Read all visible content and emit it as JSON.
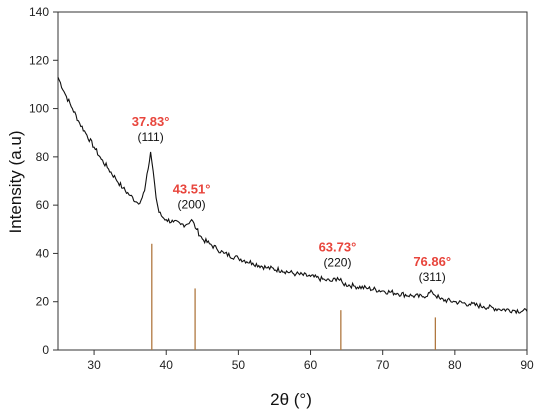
{
  "chart_data": {
    "type": "line",
    "xlabel": "2θ (°)",
    "ylabel": "Intensity (a.u)",
    "xlim": [
      25,
      90
    ],
    "ylim": [
      0,
      140
    ],
    "x_ticks": [
      30,
      40,
      50,
      60,
      70,
      80,
      90
    ],
    "y_ticks": [
      0,
      20,
      40,
      60,
      80,
      100,
      120,
      140
    ],
    "grid": false,
    "series": [
      {
        "x": [
          25,
          26,
          27,
          28,
          29,
          30,
          31,
          32,
          33,
          34,
          35,
          36,
          36.5,
          37,
          37.5,
          37.83,
          38.2,
          38.6,
          39,
          39.5,
          40,
          41,
          42,
          42.8,
          43.51,
          44.2,
          45,
          46,
          47,
          48,
          50,
          52,
          54,
          56,
          58,
          60,
          62,
          63,
          63.73,
          64.5,
          66,
          68,
          70,
          72,
          74,
          75.5,
          76.86,
          78,
          80,
          82,
          84,
          86,
          88,
          90
        ],
        "y": [
          113,
          106,
          100,
          94,
          89,
          84,
          79,
          75,
          71,
          67,
          64,
          61,
          62,
          66,
          75,
          82,
          74,
          63,
          57,
          55,
          54,
          53,
          52,
          52,
          54,
          50,
          46,
          44,
          42,
          40,
          38,
          36,
          34,
          33,
          31.5,
          30.5,
          29,
          28.5,
          30,
          27.5,
          26.5,
          25.5,
          24.5,
          23.5,
          22.5,
          22,
          24,
          21,
          20,
          19,
          18,
          17,
          16.5,
          16
        ]
      }
    ],
    "reference_lines": [
      {
        "x": 38.0,
        "height": 44
      },
      {
        "x": 44.0,
        "height": 25.5
      },
      {
        "x": 64.2,
        "height": 16.5
      },
      {
        "x": 77.3,
        "height": 13.5
      }
    ],
    "annotations": [
      {
        "angle": "37.83°",
        "hkl": "(111)",
        "x": 37.83,
        "y": 82
      },
      {
        "angle": "43.51°",
        "hkl": "(200)",
        "x": 43.51,
        "y": 54
      },
      {
        "angle": "63.73°",
        "hkl": "(220)",
        "x": 63.73,
        "y": 30
      },
      {
        "angle": "76.86°",
        "hkl": "(311)",
        "x": 76.86,
        "y": 24
      }
    ],
    "colors": {
      "pattern": "#111111",
      "reference": "#b07840",
      "angle_label": "#e8453c",
      "axis": "#333333"
    }
  }
}
